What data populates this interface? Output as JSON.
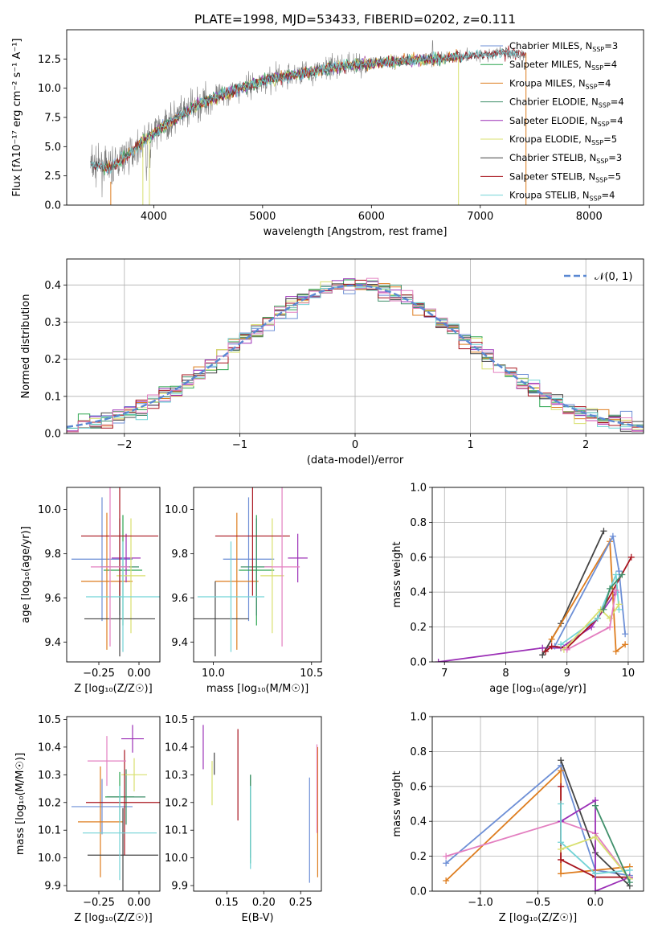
{
  "title": "PLATE=1998, MJD=53433, FIBERID=0202, z=0.111",
  "colors": {
    "chabrier_miles": "#6d8fd6",
    "salpeter_miles": "#2ba54f",
    "kroupa_miles": "#de7d1f",
    "chabrier_elodie": "#3f8f6a",
    "salpeter_elodie": "#9b2fb6",
    "kroupa_elodie": "#d8e06f",
    "chabrier_stelib": "#444444",
    "salpeter_stelib": "#a8141e",
    "kroupa_stelib": "#72d3d6",
    "gauss": "#5a88d2",
    "pink": "#e37fc0",
    "gray": "#808080"
  },
  "chart_data": [
    {
      "id": "spectrum",
      "type": "line",
      "xlabel": "wavelength [Angstrom, rest frame]",
      "ylabel": "Flux [f",
      "ylabel_full": "Flux [fλ10⁻¹⁷ erg cm⁻² s⁻¹ A⁻¹]",
      "xlim": [
        3200,
        8500
      ],
      "ylim": [
        0,
        15
      ],
      "xticks": [
        4000,
        5000,
        6000,
        7000,
        8000
      ],
      "yticks": [
        0.0,
        2.5,
        5.0,
        7.5,
        10.0,
        12.5
      ],
      "legend_position": "top-right",
      "legend": [
        {
          "label": "Chabrier MILES, N",
          "sub": "SSP",
          "tail": "=3",
          "color": "chabrier_miles"
        },
        {
          "label": "Salpeter MILES, N",
          "sub": "SSP",
          "tail": "=4",
          "color": "salpeter_miles"
        },
        {
          "label": "Kroupa MILES, N",
          "sub": "SSP",
          "tail": "=4",
          "color": "kroupa_miles"
        },
        {
          "label": "Chabrier ELODIE, N",
          "sub": "SSP",
          "tail": "=4",
          "color": "chabrier_elodie"
        },
        {
          "label": "Salpeter ELODIE, N",
          "sub": "SSP",
          "tail": "=4",
          "color": "salpeter_elodie"
        },
        {
          "label": "Kroupa ELODIE, N",
          "sub": "SSP",
          "tail": "=5",
          "color": "kroupa_elodie"
        },
        {
          "label": "Chabrier STELIB, N",
          "sub": "SSP",
          "tail": "=3",
          "color": "chabrier_stelib"
        },
        {
          "label": "Salpeter STELIB, N",
          "sub": "SSP",
          "tail": "=5",
          "color": "salpeter_stelib"
        },
        {
          "label": "Kroupa STELIB, N",
          "sub": "SSP",
          "tail": "=4",
          "color": "kroupa_stelib"
        }
      ],
      "continuum": [
        [
          3400,
          3.5
        ],
        [
          3600,
          3.2
        ],
        [
          3800,
          4.6
        ],
        [
          4000,
          6.2
        ],
        [
          4200,
          7.4
        ],
        [
          4400,
          8.6
        ],
        [
          4600,
          9.3
        ],
        [
          4800,
          10.0
        ],
        [
          5000,
          10.6
        ],
        [
          5200,
          11.0
        ],
        [
          5400,
          11.3
        ],
        [
          5600,
          11.7
        ],
        [
          5800,
          12.0
        ],
        [
          6000,
          12.1
        ],
        [
          6200,
          12.3
        ],
        [
          6400,
          12.4
        ],
        [
          6600,
          12.5
        ],
        [
          6800,
          12.7
        ],
        [
          7000,
          12.8
        ],
        [
          7200,
          13.0
        ],
        [
          7400,
          12.9
        ]
      ]
    },
    {
      "id": "residuals",
      "type": "histogram",
      "xlabel": "(data-model)/error",
      "ylabel": "Normed distribution",
      "xlim": [
        -2.5,
        2.5
      ],
      "ylim": [
        0,
        0.47
      ],
      "xticks": [
        -2,
        -1,
        0,
        1,
        2
      ],
      "yticks": [
        0.0,
        0.1,
        0.2,
        0.3,
        0.4
      ],
      "grid": true,
      "legend_position": "top-right",
      "legend": [
        {
          "label": "𝒩(0, 1)",
          "color": "gauss"
        }
      ],
      "bin_width": 0.1
    },
    {
      "id": "age_vs_Z",
      "type": "errorbar",
      "xlabel": "Z [log₁₀(Z/Z☉)]",
      "ylabel": "age  [log₁₀(age/yr)]",
      "xlim": [
        -0.45,
        0.13
      ],
      "ylim": [
        9.31,
        10.1
      ],
      "xticks": [
        -0.25,
        0.0
      ],
      "yticks": [
        9.4,
        9.6,
        9.8,
        10.0
      ],
      "points": [
        {
          "x": -0.23,
          "xerr": 0.19,
          "y": 9.775,
          "yerr": 0.28,
          "color": "chabrier_miles"
        },
        {
          "x": -0.1,
          "xerr": 0.12,
          "y": 9.725,
          "yerr": 0.25,
          "color": "salpeter_miles"
        },
        {
          "x": -0.2,
          "xerr": 0.16,
          "y": 9.675,
          "yerr": 0.31,
          "color": "kroupa_miles"
        },
        {
          "x": -0.12,
          "xerr": 0.12,
          "y": 9.74,
          "yerr": 0.22,
          "color": "chabrier_elodie"
        },
        {
          "x": -0.08,
          "xerr": 0.09,
          "y": 9.78,
          "yerr": 0.11,
          "color": "salpeter_elodie"
        },
        {
          "x": -0.05,
          "xerr": 0.09,
          "y": 9.7,
          "yerr": 0.26,
          "color": "kroupa_elodie"
        },
        {
          "x": -0.12,
          "xerr": 0.22,
          "y": 9.505,
          "yerr": 0.17,
          "color": "chabrier_stelib"
        },
        {
          "x": -0.12,
          "xerr": 0.24,
          "y": 9.88,
          "yerr": 0.27,
          "color": "salpeter_stelib"
        },
        {
          "x": -0.1,
          "xerr": 0.23,
          "y": 9.605,
          "yerr": 0.25,
          "color": "kroupa_stelib"
        },
        {
          "x": -0.18,
          "xerr": 0.12,
          "y": 9.74,
          "yerr": 0.36,
          "color": "pink"
        }
      ]
    },
    {
      "id": "age_vs_mass",
      "type": "errorbar",
      "xlabel": "mass [log₁₀(M/M☉)]",
      "ylabel": "",
      "xlim": [
        9.9,
        10.55
      ],
      "ylim": [
        9.31,
        10.1
      ],
      "xticks": [
        10.0,
        10.5
      ],
      "yticks": [
        9.4,
        9.6,
        9.8,
        10.0
      ],
      "points": [
        {
          "x": 10.18,
          "xerr": 0.13,
          "y": 9.775,
          "yerr": 0.28,
          "color": "chabrier_miles"
        },
        {
          "x": 10.22,
          "xerr": 0.09,
          "y": 9.725,
          "yerr": 0.25,
          "color": "salpeter_miles"
        },
        {
          "x": 10.12,
          "xerr": 0.11,
          "y": 9.675,
          "yerr": 0.31,
          "color": "kroupa_miles"
        },
        {
          "x": 10.22,
          "xerr": 0.08,
          "y": 9.74,
          "yerr": 0.22,
          "color": "chabrier_elodie"
        },
        {
          "x": 10.43,
          "xerr": 0.05,
          "y": 9.78,
          "yerr": 0.11,
          "color": "salpeter_elodie"
        },
        {
          "x": 10.3,
          "xerr": 0.06,
          "y": 9.7,
          "yerr": 0.26,
          "color": "kroupa_elodie"
        },
        {
          "x": 10.01,
          "xerr": 0.17,
          "y": 9.505,
          "yerr": 0.17,
          "color": "chabrier_stelib"
        },
        {
          "x": 10.2,
          "xerr": 0.19,
          "y": 9.88,
          "yerr": 0.27,
          "color": "salpeter_stelib"
        },
        {
          "x": 10.09,
          "xerr": 0.17,
          "y": 9.605,
          "yerr": 0.25,
          "color": "kroupa_stelib"
        },
        {
          "x": 10.35,
          "xerr": 0.09,
          "y": 9.74,
          "yerr": 0.36,
          "color": "pink"
        }
      ]
    },
    {
      "id": "weight_vs_age",
      "type": "line",
      "xlabel": "age  [log₁₀(age/yr)]",
      "ylabel": "mass weight",
      "xlim": [
        6.8,
        10.25
      ],
      "ylim": [
        0,
        1.0
      ],
      "xticks": [
        7,
        8,
        9,
        10
      ],
      "yticks": [
        0.0,
        0.2,
        0.4,
        0.6,
        0.8,
        1.0
      ],
      "grid": true,
      "series": [
        {
          "color": "salpeter_elodie",
          "points": [
            [
              6.9,
              0.0
            ],
            [
              8.6,
              0.08
            ],
            [
              8.9,
              0.08
            ],
            [
              9.4,
              0.2
            ],
            [
              9.8,
              0.4
            ]
          ]
        },
        {
          "color": "chabrier_stelib",
          "points": [
            [
              8.6,
              0.04
            ],
            [
              8.9,
              0.22
            ],
            [
              9.6,
              0.75
            ]
          ]
        },
        {
          "color": "kroupa_miles",
          "points": [
            [
              8.75,
              0.13
            ],
            [
              9.7,
              0.69
            ],
            [
              9.8,
              0.06
            ],
            [
              9.95,
              0.1
            ]
          ]
        },
        {
          "color": "chabrier_miles",
          "points": [
            [
              8.8,
              0.09
            ],
            [
              9.75,
              0.72
            ],
            [
              9.85,
              0.52
            ],
            [
              9.95,
              0.16
            ]
          ]
        },
        {
          "color": "salpeter_stelib",
          "points": [
            [
              8.65,
              0.06
            ],
            [
              8.75,
              0.09
            ],
            [
              9.0,
              0.08
            ],
            [
              9.5,
              0.25
            ],
            [
              10.05,
              0.6
            ]
          ]
        },
        {
          "color": "kroupa_stelib",
          "points": [
            [
              8.9,
              0.1
            ],
            [
              9.5,
              0.25
            ],
            [
              9.8,
              0.5
            ],
            [
              9.85,
              0.3
            ]
          ]
        },
        {
          "color": "kroupa_elodie",
          "points": [
            [
              8.95,
              0.07
            ],
            [
              9.55,
              0.3
            ],
            [
              9.7,
              0.25
            ],
            [
              9.85,
              0.33
            ]
          ]
        },
        {
          "color": "chabrier_elodie",
          "points": [
            [
              9.6,
              0.3
            ],
            [
              9.7,
              0.42
            ],
            [
              9.9,
              0.5
            ]
          ]
        },
        {
          "color": "pink",
          "points": [
            [
              9.0,
              0.07
            ],
            [
              9.7,
              0.2
            ],
            [
              9.8,
              0.41
            ]
          ]
        }
      ]
    },
    {
      "id": "mass_vs_Z",
      "type": "errorbar",
      "xlabel": "Z [log₁₀(Z/Z☉)]",
      "ylabel": "mass [log₁₀(M/M☉)]",
      "xlim": [
        -0.45,
        0.13
      ],
      "ylim": [
        9.88,
        10.51
      ],
      "xticks": [
        -0.25,
        0.0
      ],
      "yticks": [
        9.9,
        10.0,
        10.1,
        10.2,
        10.3,
        10.4,
        10.5
      ],
      "points": [
        {
          "x": -0.23,
          "xerr": 0.19,
          "y": 10.185,
          "yerr": 0.1,
          "color": "chabrier_miles"
        },
        {
          "x": -0.12,
          "xerr": 0.09,
          "y": 10.22,
          "yerr": 0.09,
          "color": "salpeter_miles"
        },
        {
          "x": -0.24,
          "xerr": 0.14,
          "y": 10.13,
          "yerr": 0.2,
          "color": "kroupa_miles"
        },
        {
          "x": -0.08,
          "xerr": 0.12,
          "y": 10.22,
          "yerr": 0.1,
          "color": "chabrier_elodie"
        },
        {
          "x": -0.04,
          "xerr": 0.07,
          "y": 10.43,
          "yerr": 0.05,
          "color": "salpeter_elodie"
        },
        {
          "x": -0.03,
          "xerr": 0.08,
          "y": 10.3,
          "yerr": 0.06,
          "color": "kroupa_elodie"
        },
        {
          "x": -0.1,
          "xerr": 0.22,
          "y": 10.01,
          "yerr": 0.17,
          "color": "chabrier_stelib"
        },
        {
          "x": -0.09,
          "xerr": 0.24,
          "y": 10.2,
          "yerr": 0.19,
          "color": "salpeter_stelib"
        },
        {
          "x": -0.12,
          "xerr": 0.23,
          "y": 10.09,
          "yerr": 0.17,
          "color": "kroupa_stelib"
        },
        {
          "x": -0.2,
          "xerr": 0.12,
          "y": 10.35,
          "yerr": 0.09,
          "color": "pink"
        }
      ]
    },
    {
      "id": "mass_vs_EBV",
      "type": "errorbar",
      "xlabel": "E(B-V)",
      "ylabel": "",
      "xlim": [
        0.105,
        0.278
      ],
      "ylim": [
        9.88,
        10.51
      ],
      "xticks": [
        0.15,
        0.2,
        0.25
      ],
      "yticks": [
        9.9,
        10.0,
        10.1,
        10.2,
        10.3,
        10.4,
        10.5
      ],
      "points": [
        {
          "x": 0.262,
          "xerr": 0.0,
          "y": 10.1,
          "yerr": 0.19,
          "color": "chabrier_miles"
        },
        {
          "x": 0.182,
          "xerr": 0.0,
          "y": 10.14,
          "yerr": 0.16,
          "color": "salpeter_miles"
        },
        {
          "x": 0.273,
          "xerr": 0.0,
          "y": 10.165,
          "yerr": 0.235,
          "color": "kroupa_miles"
        },
        {
          "x": 0.182,
          "xerr": 0.0,
          "y": 10.15,
          "yerr": 0.15,
          "color": "chabrier_elodie"
        },
        {
          "x": 0.118,
          "xerr": 0.0,
          "y": 10.4,
          "yerr": 0.08,
          "color": "salpeter_elodie"
        },
        {
          "x": 0.13,
          "xerr": 0.0,
          "y": 10.27,
          "yerr": 0.08,
          "color": "kroupa_elodie"
        },
        {
          "x": 0.133,
          "xerr": 0.0,
          "y": 10.34,
          "yerr": 0.04,
          "color": "chabrier_stelib"
        },
        {
          "x": 0.165,
          "xerr": 0.0,
          "y": 10.3,
          "yerr": 0.165,
          "color": "salpeter_stelib"
        },
        {
          "x": 0.182,
          "xerr": 0.0,
          "y": 10.11,
          "yerr": 0.15,
          "color": "kroupa_stelib"
        },
        {
          "x": 0.272,
          "xerr": 0.0,
          "y": 10.25,
          "yerr": 0.16,
          "color": "pink"
        }
      ]
    },
    {
      "id": "weight_vs_Z",
      "type": "line",
      "xlabel": "Z [log₁₀(Z/Z☉)]",
      "ylabel": "mass weight",
      "xlim": [
        -1.42,
        0.42
      ],
      "ylim": [
        0,
        1.0
      ],
      "xticks": [
        -1.0,
        -0.5,
        0.0
      ],
      "yticks": [
        0.0,
        0.2,
        0.4,
        0.6,
        0.8,
        1.0
      ],
      "grid": true,
      "series": [
        {
          "color": "chabrier_miles",
          "points": [
            [
              -1.3,
              0.16
            ],
            [
              -0.3,
              0.72
            ],
            [
              0.0,
              0.12
            ],
            [
              0.3,
              0.09
            ]
          ]
        },
        {
          "color": "kroupa_miles",
          "points": [
            [
              -1.3,
              0.06
            ],
            [
              -0.3,
              0.69
            ],
            [
              -0.3,
              0.1
            ],
            [
              0.0,
              0.12
            ],
            [
              0.3,
              0.14
            ]
          ]
        },
        {
          "color": "pink",
          "points": [
            [
              -1.3,
              0.2
            ],
            [
              -0.3,
              0.4
            ],
            [
              0.0,
              0.33
            ],
            [
              0.3,
              0.07
            ]
          ]
        },
        {
          "color": "chabrier_stelib",
          "points": [
            [
              -0.3,
              0.75
            ],
            [
              0.0,
              0.22
            ],
            [
              0.3,
              0.03
            ]
          ]
        },
        {
          "color": "salpeter_stelib",
          "points": [
            [
              -0.3,
              0.6
            ],
            [
              -0.3,
              0.18
            ],
            [
              0.0,
              0.08
            ],
            [
              0.3,
              0.08
            ]
          ]
        },
        {
          "color": "salpeter_elodie",
          "points": [
            [
              -0.3,
              0.4
            ],
            [
              0.0,
              0.52
            ],
            [
              0.0,
              0.0
            ],
            [
              0.3,
              0.08
            ]
          ]
        },
        {
          "color": "kroupa_stelib",
          "points": [
            [
              -0.3,
              0.5
            ],
            [
              -0.3,
              0.28
            ],
            [
              0.0,
              0.1
            ],
            [
              0.3,
              0.12
            ]
          ]
        },
        {
          "color": "kroupa_elodie",
          "points": [
            [
              -0.3,
              0.24
            ],
            [
              0.0,
              0.31
            ],
            [
              0.3,
              0.07
            ]
          ]
        },
        {
          "color": "chabrier_elodie",
          "points": [
            [
              0.0,
              0.49
            ],
            [
              0.3,
              0.05
            ]
          ]
        }
      ]
    }
  ]
}
